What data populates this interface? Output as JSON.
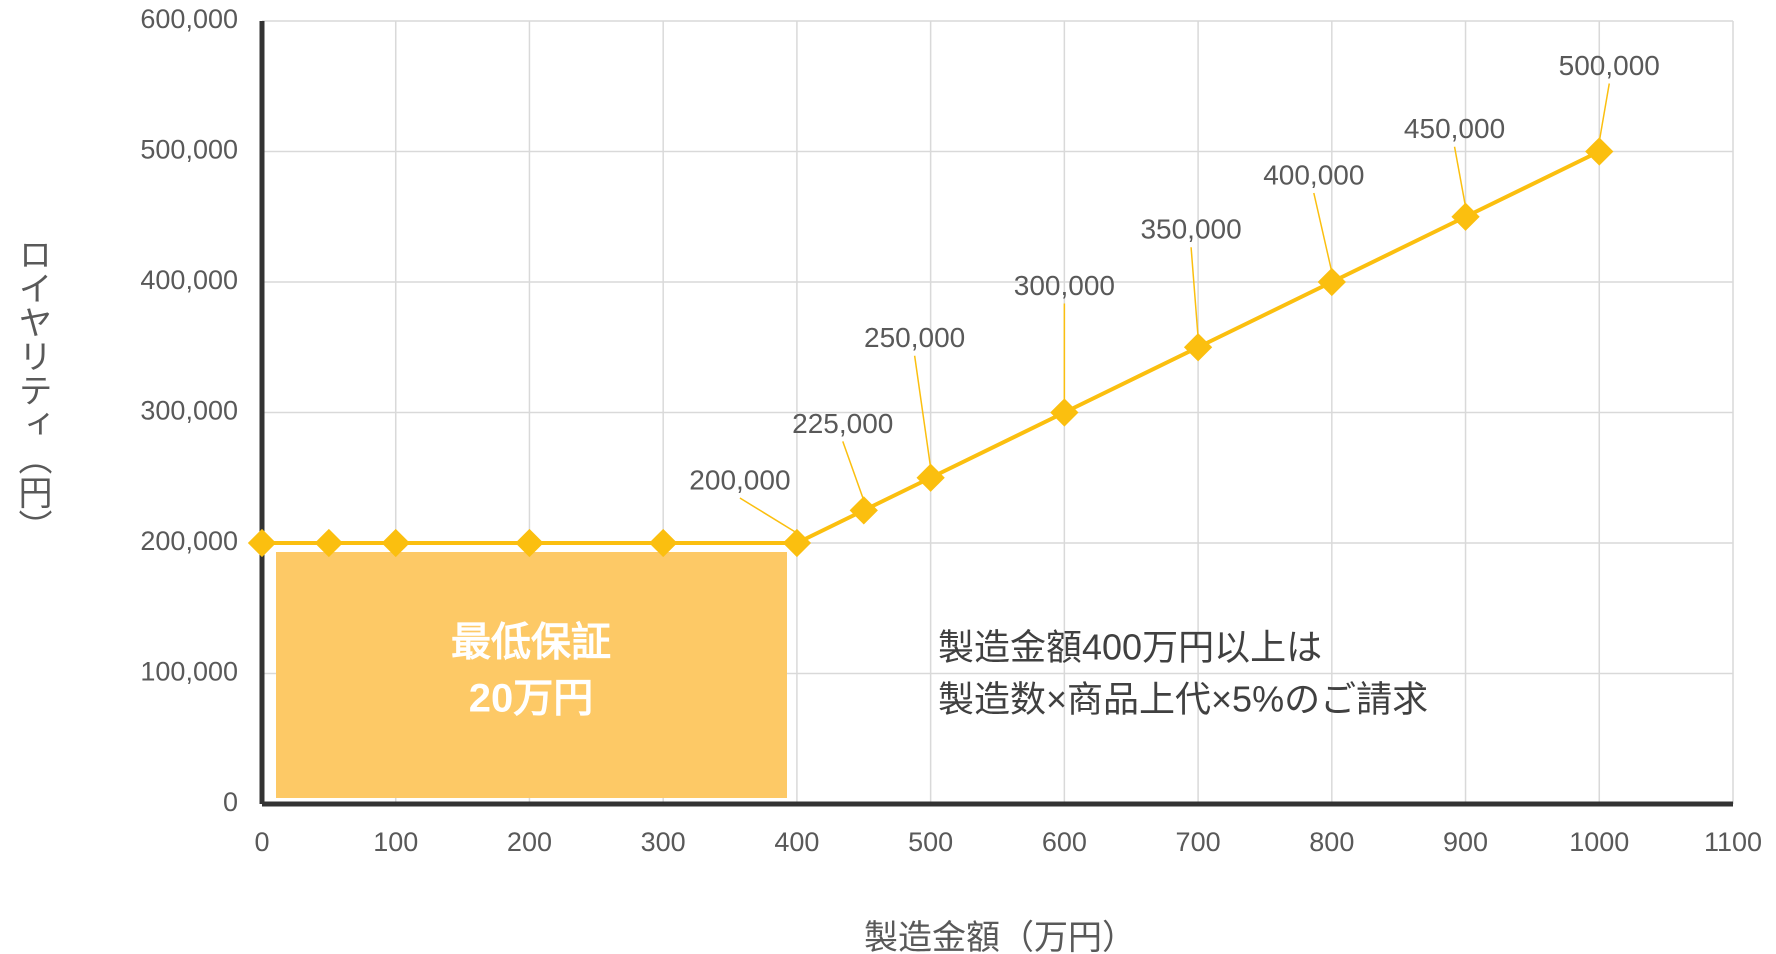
{
  "chart_data": {
    "type": "line",
    "x_label": "製造金額（万円）",
    "y_label": "ロイヤリティ（円）",
    "x": [
      0,
      50,
      100,
      200,
      300,
      400,
      450,
      500,
      600,
      700,
      800,
      900,
      1000
    ],
    "series": [
      {
        "name": "ロイヤリティ",
        "color": "#fbbf0f",
        "values": [
          200000,
          200000,
          200000,
          200000,
          200000,
          200000,
          225000,
          250000,
          300000,
          350000,
          400000,
          450000,
          500000
        ],
        "value_labels": [
          null,
          null,
          null,
          null,
          null,
          "200,000",
          "225,000",
          "250,000",
          "300,000",
          "350,000",
          "400,000",
          "450,000",
          "500,000"
        ]
      }
    ],
    "xlim": [
      0,
      1100
    ],
    "xticks": [
      0,
      100,
      200,
      300,
      400,
      500,
      600,
      700,
      800,
      900,
      1000,
      1100
    ],
    "ylim": [
      0,
      600000
    ],
    "yticks": [
      0,
      {
        "value": 100000,
        "label": "100,000"
      },
      {
        "value": 200000,
        "label": "200,000"
      },
      {
        "value": 300000,
        "label": "300,000"
      },
      {
        "value": 400000,
        "label": "400,000"
      },
      {
        "value": 500000,
        "label": "500,000"
      },
      {
        "value": 600000,
        "label": "600,000"
      }
    ],
    "grid": true,
    "annotations": [
      {
        "lines": [
          "最低保証",
          "20万円"
        ],
        "color": "#fdc966"
      },
      {
        "lines": [
          "製造金額400万円以上は",
          "製造数×商品上代×5%のご請求"
        ]
      }
    ]
  }
}
